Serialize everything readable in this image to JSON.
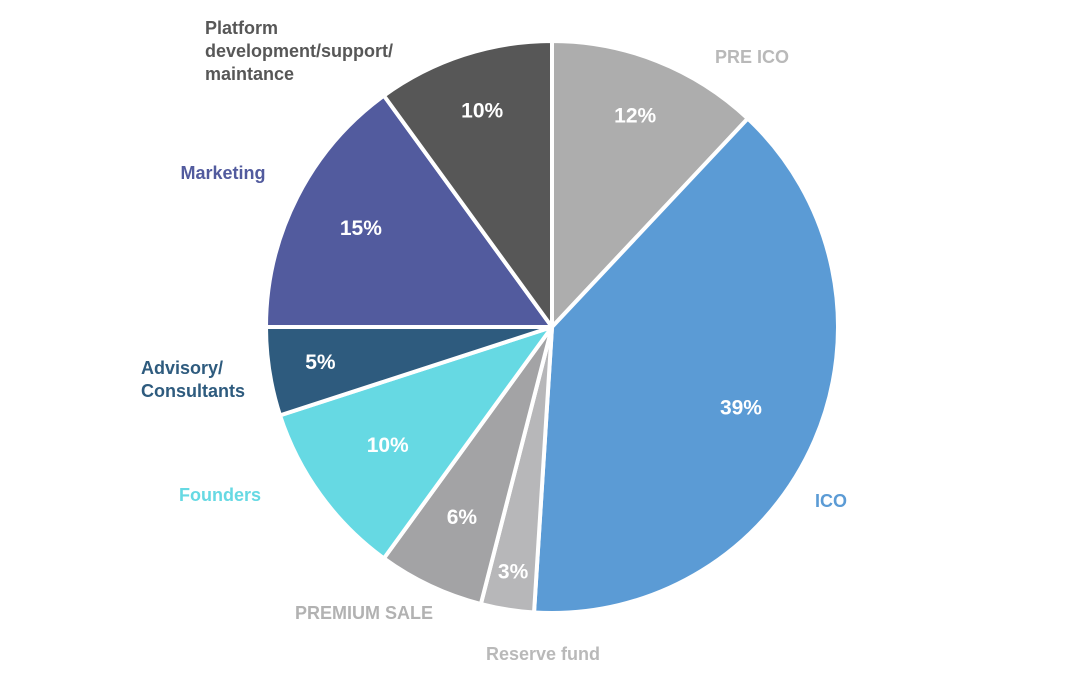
{
  "chart_data": {
    "type": "pie",
    "title": "",
    "unit": "%",
    "slices": [
      {
        "label": "PRE ICO",
        "value": 12,
        "display": "12%",
        "color": "#adadad",
        "label_color": "#b9b9b9"
      },
      {
        "label": "ICO",
        "value": 39,
        "display": "39%",
        "color": "#5b9bd5",
        "label_color": "#5b9bd5"
      },
      {
        "label": "Reserve fund",
        "value": 3,
        "display": "3%",
        "color": "#b7b7b9",
        "label_color": "#b9b9b9"
      },
      {
        "label": "PREMIUM SALE",
        "value": 6,
        "display": "6%",
        "color": "#a3a3a5",
        "label_color": "#b2b2b2"
      },
      {
        "label": "Founders",
        "value": 10,
        "display": "10%",
        "color": "#66d9e3",
        "label_color": "#66d9e3"
      },
      {
        "label": "Advisory/ Consultants",
        "label_lines": [
          "Advisory/",
          "Consultants"
        ],
        "value": 5,
        "display": "5%",
        "color": "#2e5b7e",
        "label_color": "#2e5b7e"
      },
      {
        "label": "Marketing",
        "value": 15,
        "display": "15%",
        "color": "#525b9e",
        "label_color": "#525b9e"
      },
      {
        "label": "Platform development/support/ maintance",
        "label_lines": [
          "Platform",
          "development/support/",
          "maintance"
        ],
        "value": 10,
        "display": "10%",
        "color": "#575757",
        "label_color": "#575757"
      }
    ]
  }
}
